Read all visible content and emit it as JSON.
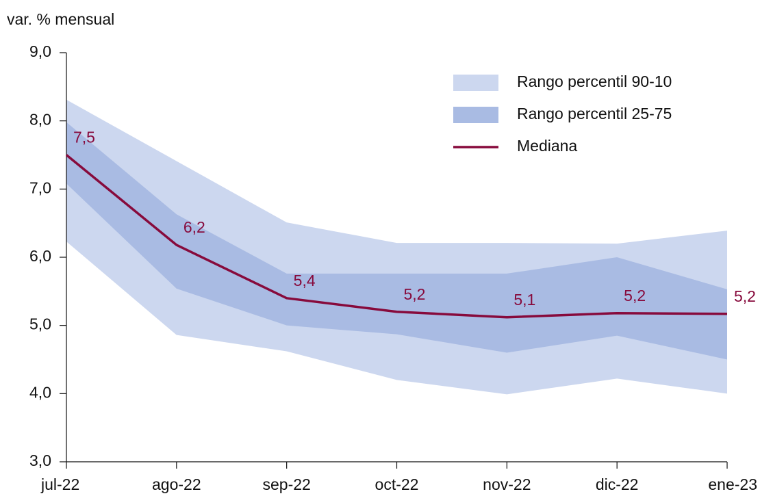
{
  "chart_data": {
    "type": "band-line",
    "y_label": "var. % mensual",
    "categories": [
      "jul-22",
      "ago-22",
      "sep-22",
      "oct-22",
      "nov-22",
      "dic-22",
      "ene-23"
    ],
    "ylim": [
      3.0,
      9.0
    ],
    "yticks": [
      {
        "value": 3.0,
        "label": "3,0"
      },
      {
        "value": 4.0,
        "label": "4,0"
      },
      {
        "value": 5.0,
        "label": "5,0"
      },
      {
        "value": 6.0,
        "label": "6,0"
      },
      {
        "value": 7.0,
        "label": "7,0"
      },
      {
        "value": 8.0,
        "label": "8,0"
      },
      {
        "value": 9.0,
        "label": "9,0"
      }
    ],
    "legend": "top-right",
    "series": [
      {
        "name": "Rango percentil 90-10",
        "kind": "band",
        "color": "#ccd7ef",
        "high": [
          8.31,
          7.41,
          6.51,
          6.21,
          6.21,
          6.2,
          6.39
        ],
        "low": [
          6.23,
          4.86,
          4.62,
          4.2,
          3.99,
          4.22,
          4.0
        ]
      },
      {
        "name": "Rango percentil 25-75",
        "kind": "band",
        "color": "#a9bbe3",
        "high": [
          7.98,
          6.63,
          5.76,
          5.76,
          5.76,
          6.0,
          5.53
        ],
        "low": [
          7.08,
          5.54,
          5.0,
          4.87,
          4.6,
          4.85,
          4.5
        ]
      },
      {
        "name": "Mediana",
        "kind": "line",
        "color": "#870a3c",
        "values": [
          7.5,
          6.18,
          5.4,
          5.2,
          5.12,
          5.18,
          5.17
        ],
        "value_labels": [
          "7,5",
          "6,2",
          "5,4",
          "5,2",
          "5,1",
          "5,2",
          "5,2"
        ]
      }
    ]
  }
}
